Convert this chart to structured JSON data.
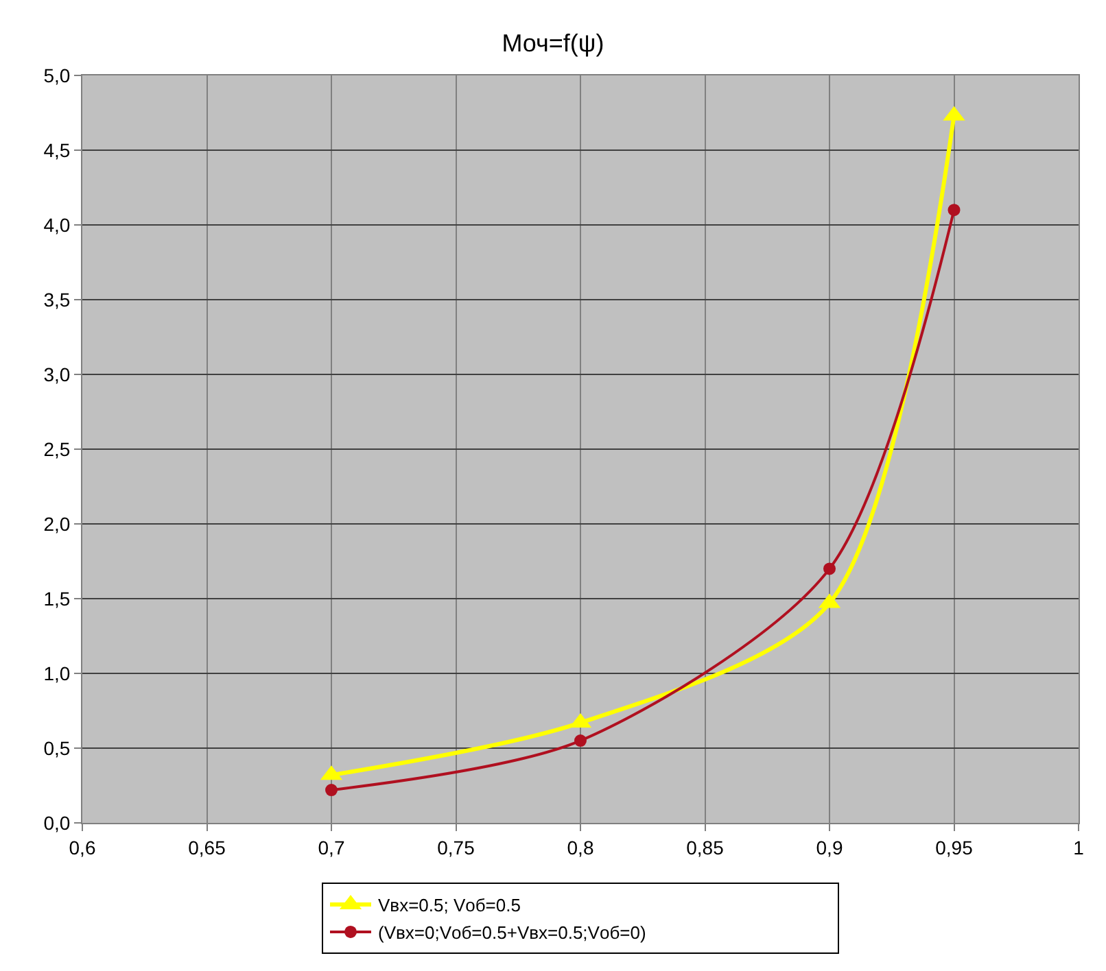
{
  "chart_data": {
    "type": "line",
    "title": "Моч=f(ψ)",
    "x": [
      0.7,
      0.8,
      0.9,
      0.95
    ],
    "series": [
      {
        "name": "Vвх=0.5; Vоб=0.5",
        "color": "#ffff00",
        "values": [
          0.32,
          0.67,
          1.47,
          4.73
        ],
        "marker": "triangle"
      },
      {
        "name": "(Vвх=0;Vоб=0.5+Vвх=0.5;Vоб=0)",
        "color": "#b01020",
        "values": [
          0.22,
          0.55,
          1.7,
          4.1
        ],
        "marker": "circle"
      }
    ],
    "xlim": [
      0.6,
      1
    ],
    "xticks": [
      {
        "value": 0.6,
        "label": "0,6"
      },
      {
        "value": 0.65,
        "label": "0,65"
      },
      {
        "value": 0.7,
        "label": "0,7"
      },
      {
        "value": 0.75,
        "label": "0,75"
      },
      {
        "value": 0.8,
        "label": "0,8"
      },
      {
        "value": 0.85,
        "label": "0,85"
      },
      {
        "value": 0.9,
        "label": "0,9"
      },
      {
        "value": 0.95,
        "label": "0,95"
      },
      1
    ],
    "ylim": [
      0,
      5
    ],
    "yticks": [
      {
        "value": 0,
        "label": "0,0"
      },
      {
        "value": 0.5,
        "label": "0,5"
      },
      {
        "value": 1,
        "label": "1,0"
      },
      {
        "value": 1.5,
        "label": "1,5"
      },
      {
        "value": 2,
        "label": "2,0"
      },
      {
        "value": 2.5,
        "label": "2,5"
      },
      {
        "value": 3,
        "label": "3,0"
      },
      {
        "value": 3.5,
        "label": "3,5"
      },
      {
        "value": 4,
        "label": "4,0"
      },
      {
        "value": 4.5,
        "label": "4,5"
      },
      {
        "value": 5,
        "label": "5,0"
      }
    ],
    "grid": true,
    "legend": "bottom"
  }
}
